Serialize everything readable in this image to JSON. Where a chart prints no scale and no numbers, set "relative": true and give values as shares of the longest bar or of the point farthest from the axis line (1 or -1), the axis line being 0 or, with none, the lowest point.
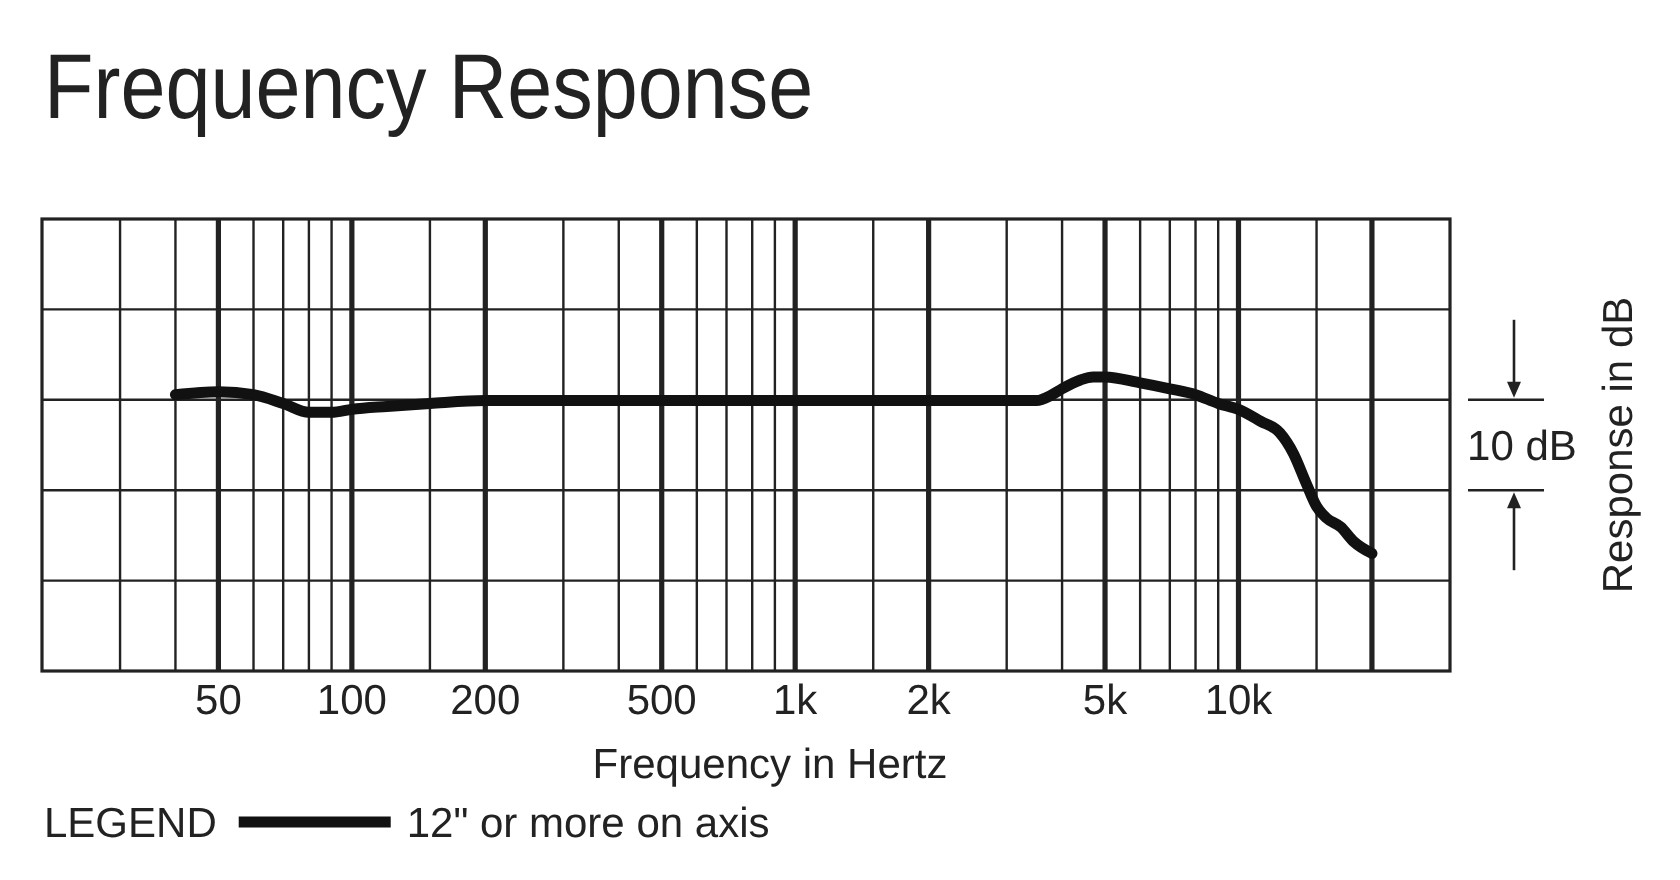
{
  "chart_data": {
    "type": "line",
    "title": "Frequency Response",
    "xlabel": "Frequency in Hertz",
    "ylabel": "Response in dB",
    "legend_title": "LEGEND",
    "legend": "bottom left",
    "annotations": [
      "10 dB"
    ],
    "relative": true,
    "log": "x",
    "grid": true,
    "line_style": "solid",
    "xlim": [
      20,
      30000
    ],
    "xticks": [
      {
        "value": 30,
        "label": null
      },
      {
        "value": 40,
        "label": null
      },
      50,
      {
        "value": 60,
        "label": null
      },
      {
        "value": 70,
        "label": null
      },
      {
        "value": 80,
        "label": null
      },
      {
        "value": 90,
        "label": null
      },
      100,
      {
        "value": 150,
        "label": null
      },
      200,
      {
        "value": 300,
        "label": null
      },
      {
        "value": 400,
        "label": null
      },
      500,
      {
        "value": 600,
        "label": null
      },
      {
        "value": 700,
        "label": null
      },
      {
        "value": 800,
        "label": null
      },
      {
        "value": 900,
        "label": null
      },
      {
        "value": 1000,
        "label": "1k"
      },
      {
        "value": 1500,
        "label": null
      },
      {
        "value": 2000,
        "label": "2k"
      },
      {
        "value": 3000,
        "label": null
      },
      {
        "value": 4000,
        "label": null
      },
      {
        "value": 5000,
        "label": "5k"
      },
      {
        "value": 6000,
        "label": null
      },
      {
        "value": 7000,
        "label": null
      },
      {
        "value": 8000,
        "label": null
      },
      {
        "value": 9000,
        "label": null
      },
      {
        "value": 10000,
        "label": "10k"
      },
      {
        "value": 15000,
        "label": null
      },
      {
        "value": 20000,
        "label": null
      }
    ],
    "x": [
      40,
      50,
      60,
      70,
      80,
      90,
      100,
      120,
      150,
      200,
      500,
      1000,
      2000,
      3000,
      3500,
      3800,
      4000,
      4400,
      4700,
      5000,
      6000,
      7000,
      8000,
      9000,
      10000,
      11200,
      12400,
      13300,
      14200,
      15000,
      15800,
      17000,
      18200,
      20000
    ],
    "series": [
      {
        "name": "12\" or more on axis",
        "color": "#111111",
        "values": [
          0.94,
          0.95,
          0.94,
          0.91,
          0.88,
          0.88,
          0.89,
          0.9,
          0.91,
          0.92,
          0.92,
          0.92,
          0.92,
          0.92,
          0.92,
          0.94,
          0.96,
          0.99,
          1.0,
          1.0,
          0.98,
          0.96,
          0.94,
          0.91,
          0.89,
          0.85,
          0.81,
          0.74,
          0.64,
          0.56,
          0.52,
          0.49,
          0.44,
          0.4
        ]
      }
    ]
  }
}
